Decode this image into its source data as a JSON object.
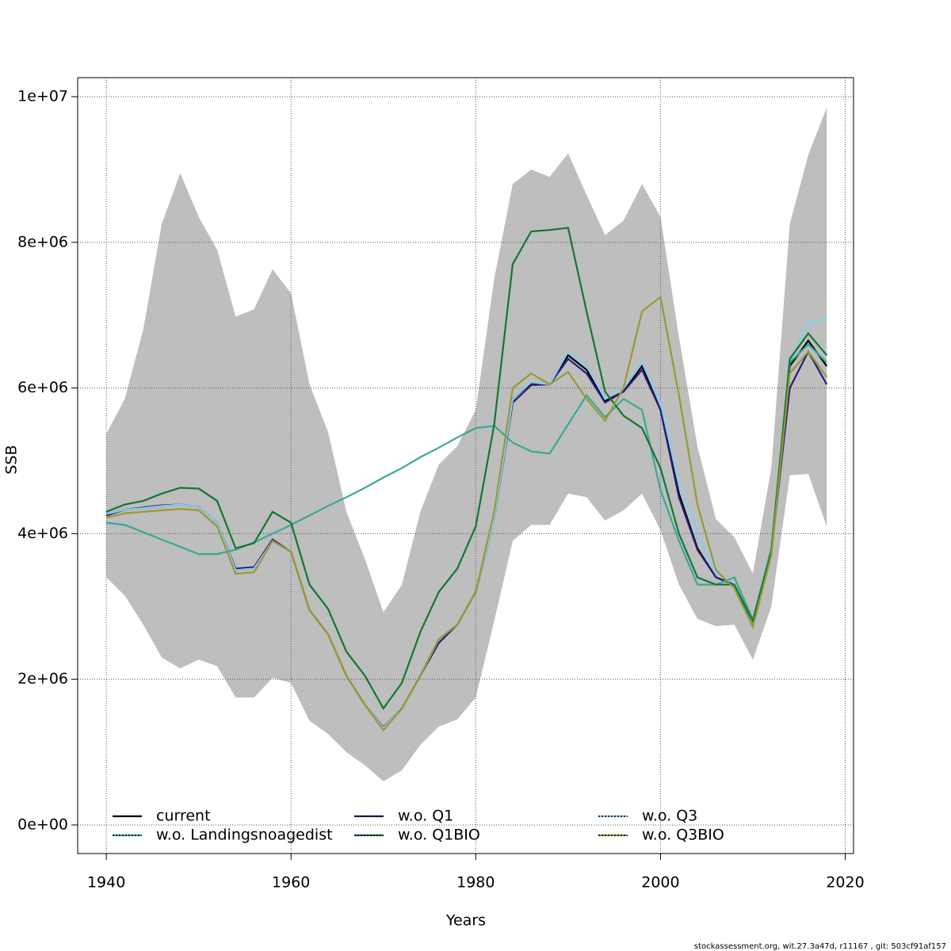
{
  "chart_data": {
    "type": "line",
    "xlabel": "Years",
    "ylabel": "SSB",
    "footer": "stockassessment.org, wit.27.3a47d, r11167 , git: 503cf91af157",
    "x": [
      1940,
      1942,
      1944,
      1946,
      1948,
      1950,
      1952,
      1954,
      1956,
      1958,
      1960,
      1962,
      1964,
      1966,
      1968,
      1970,
      1972,
      1974,
      1976,
      1978,
      1980,
      1982,
      1984,
      1986,
      1988,
      1990,
      1992,
      1994,
      1996,
      1998,
      2000,
      2002,
      2004,
      2006,
      2008,
      2010,
      2012,
      2014,
      2016,
      2018
    ],
    "band": {
      "color": "#bebebe",
      "upper": [
        5370000,
        5850000,
        6800000,
        8250000,
        8950000,
        8350000,
        7900000,
        6980000,
        7080000,
        7630000,
        7300000,
        6050000,
        5400000,
        4300000,
        3650000,
        2920000,
        3300000,
        4300000,
        4950000,
        5200000,
        5700000,
        7500000,
        8800000,
        9000000,
        8900000,
        9220000,
        8650000,
        8100000,
        8300000,
        8800000,
        8350000,
        6700000,
        5200000,
        4200000,
        3950000,
        3450000,
        4900000,
        8250000,
        9200000,
        9850000
      ],
      "lower": [
        3400000,
        3150000,
        2750000,
        2300000,
        2150000,
        2270000,
        2180000,
        1750000,
        1750000,
        2020000,
        1950000,
        1430000,
        1250000,
        1000000,
        820000,
        600000,
        750000,
        1100000,
        1350000,
        1450000,
        1750000,
        2800000,
        3900000,
        4120000,
        4120000,
        4550000,
        4500000,
        4180000,
        4320000,
        4550000,
        4050000,
        3300000,
        2830000,
        2730000,
        2750000,
        2270000,
        3000000,
        4800000,
        4820000,
        4100000
      ]
    },
    "series": [
      {
        "name": "current",
        "color": "#000000",
        "values": [
          4270000,
          4330000,
          4350000,
          4380000,
          4400000,
          4370000,
          4150000,
          3500000,
          3520000,
          3900000,
          3750000,
          2950000,
          2620000,
          2050000,
          1650000,
          1330000,
          1600000,
          2050000,
          2550000,
          2750000,
          3200000,
          4200000,
          5850000,
          6070000,
          6050000,
          6450000,
          6250000,
          5820000,
          5950000,
          6300000,
          5700000,
          4550000,
          3800000,
          3400000,
          3300000,
          2770000,
          3750000,
          6300000,
          6650000,
          6300000
        ]
      },
      {
        "name": "w.o. Q1",
        "color": "#2c1a7a",
        "values": [
          4250000,
          4330000,
          4360000,
          4390000,
          4400000,
          4370000,
          4150000,
          3520000,
          3540000,
          3920000,
          3750000,
          2950000,
          2620000,
          2050000,
          1650000,
          1340000,
          1600000,
          2050000,
          2500000,
          2750000,
          3200000,
          4200000,
          5800000,
          6040000,
          6050000,
          6400000,
          6200000,
          5800000,
          5950000,
          6250000,
          5700000,
          4500000,
          3780000,
          3400000,
          3300000,
          2770000,
          3750000,
          6000000,
          6500000,
          6050000
        ]
      },
      {
        "name": "w.o. Q3",
        "color": "#87ceeb",
        "values": [
          4270000,
          4330000,
          4350000,
          4380000,
          4400000,
          4370000,
          4150000,
          3500000,
          3520000,
          3900000,
          3750000,
          2950000,
          2620000,
          2050000,
          1650000,
          1330000,
          1600000,
          2050000,
          2550000,
          2750000,
          3200000,
          4200000,
          5850000,
          6080000,
          6050000,
          6500000,
          6300000,
          5850000,
          6000000,
          6350000,
          5800000,
          4700000,
          4000000,
          3450000,
          3320000,
          2780000,
          3800000,
          6350000,
          6900000,
          6950000
        ]
      },
      {
        "name": "w.o. Landingsnoagedist",
        "color": "#3aa896",
        "values": [
          4150000,
          4120000,
          4020000,
          3920000,
          3820000,
          3720000,
          3720000,
          3780000,
          3880000,
          4000000,
          4120000,
          4250000,
          4380000,
          4500000,
          4630000,
          4770000,
          4900000,
          5050000,
          5180000,
          5320000,
          5450000,
          5480000,
          5250000,
          5130000,
          5100000,
          5500000,
          5900000,
          5600000,
          5850000,
          5700000,
          4600000,
          3900000,
          3300000,
          3300000,
          3400000,
          2820000,
          3800000,
          6350000,
          6600000,
          6350000
        ]
      },
      {
        "name": "w.o. Q1BIO",
        "color": "#117733",
        "values": [
          4300000,
          4400000,
          4450000,
          4550000,
          4630000,
          4620000,
          4450000,
          3800000,
          3870000,
          4300000,
          4150000,
          3300000,
          2970000,
          2380000,
          2050000,
          1600000,
          1950000,
          2650000,
          3200000,
          3520000,
          4100000,
          5500000,
          7700000,
          8150000,
          8170000,
          8200000,
          7050000,
          5950000,
          5620000,
          5450000,
          4900000,
          4000000,
          3400000,
          3300000,
          3300000,
          2800000,
          3750000,
          6400000,
          6750000,
          6450000
        ]
      },
      {
        "name": "w.o. Q3BIO",
        "color": "#999933",
        "values": [
          4220000,
          4280000,
          4300000,
          4320000,
          4340000,
          4320000,
          4100000,
          3450000,
          3470000,
          3900000,
          3750000,
          2950000,
          2620000,
          2050000,
          1650000,
          1300000,
          1600000,
          2050000,
          2550000,
          2750000,
          3200000,
          4300000,
          6000000,
          6200000,
          6050000,
          6220000,
          5850000,
          5550000,
          6000000,
          7050000,
          7250000,
          5900000,
          4400000,
          3500000,
          3250000,
          2720000,
          3700000,
          6200000,
          6500000,
          6150000
        ]
      }
    ],
    "xlim": [
      1936.9,
      2020.9
    ],
    "ylim": [
      -392000,
      10261000
    ],
    "xticks": [
      1940,
      1960,
      1980,
      2000,
      2020
    ],
    "yticks": [
      {
        "value": 0,
        "label": "0e+00"
      },
      {
        "value": 2000000,
        "label": "2e+06"
      },
      {
        "value": 4000000,
        "label": "4e+06"
      },
      {
        "value": 6000000,
        "label": "6e+06"
      },
      {
        "value": 8000000,
        "label": "8e+06"
      },
      {
        "value": 10000000,
        "label": "1e+07"
      }
    ],
    "grid": true,
    "legend": "bottom"
  }
}
